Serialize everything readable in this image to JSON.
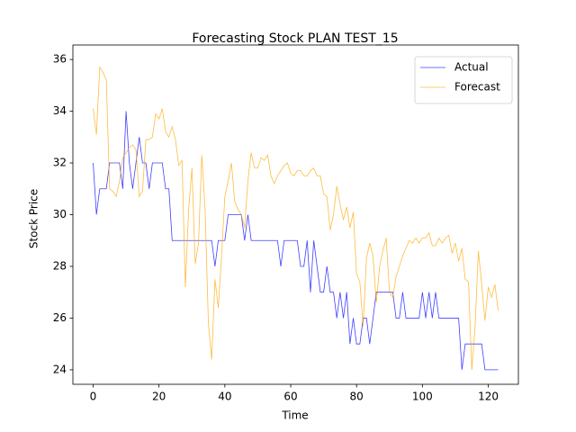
{
  "chart_data": {
    "type": "line",
    "title": "Forecasting Stock PLAN TEST_15",
    "x_label": "Time",
    "y_label": "Stock Price",
    "x": [
      0,
      1,
      2,
      3,
      4,
      5,
      6,
      7,
      8,
      9,
      10,
      11,
      12,
      13,
      14,
      15,
      16,
      17,
      18,
      19,
      20,
      21,
      22,
      23,
      24,
      25,
      26,
      27,
      28,
      29,
      30,
      31,
      32,
      33,
      34,
      35,
      36,
      37,
      38,
      39,
      40,
      41,
      42,
      43,
      44,
      45,
      46,
      47,
      48,
      49,
      50,
      51,
      52,
      53,
      54,
      55,
      56,
      57,
      58,
      59,
      60,
      61,
      62,
      63,
      64,
      65,
      66,
      67,
      68,
      69,
      70,
      71,
      72,
      73,
      74,
      75,
      76,
      77,
      78,
      79,
      80,
      81,
      82,
      83,
      84,
      85,
      86,
      87,
      88,
      89,
      90,
      91,
      92,
      93,
      94,
      95,
      96,
      97,
      98,
      99,
      100,
      101,
      102,
      103,
      104,
      105,
      106,
      107,
      108,
      109,
      110,
      111,
      112,
      113,
      114,
      115,
      116,
      117,
      118,
      119,
      120,
      121,
      122,
      123
    ],
    "series": [
      {
        "name": "Actual",
        "color": "#0000ff",
        "values": [
          32,
          30,
          31,
          31,
          31,
          32,
          32,
          32,
          32,
          31,
          34,
          32,
          31,
          32,
          33,
          32,
          32,
          31,
          32,
          32,
          32,
          32,
          31,
          31,
          29,
          29,
          29,
          29,
          29,
          29,
          29,
          29,
          29,
          29,
          29,
          29,
          29,
          28,
          29,
          29,
          29,
          30,
          30,
          30,
          30,
          30,
          29,
          30,
          29,
          29,
          29,
          29,
          29,
          29,
          29,
          29,
          29,
          28,
          29,
          29,
          29,
          29,
          29,
          28,
          28,
          29,
          27,
          29,
          28,
          27,
          27,
          28,
          27,
          27,
          26,
          27,
          26,
          27,
          25,
          26,
          25,
          25,
          26,
          26,
          25,
          26,
          27,
          27,
          27,
          27,
          27,
          27,
          26,
          26,
          27,
          26,
          26,
          26,
          26,
          26,
          27,
          26,
          27,
          26,
          27,
          26,
          26,
          26,
          26,
          26,
          26,
          26,
          24,
          25,
          25,
          25,
          25,
          25,
          25,
          24,
          24,
          24,
          24,
          24
        ]
      },
      {
        "name": "Forecast",
        "color": "#ffa500",
        "values": [
          34.1,
          33.1,
          35.7,
          35.5,
          35.2,
          31,
          30.9,
          30.7,
          31.3,
          32.2,
          32.4,
          32.6,
          32.7,
          32.5,
          30.7,
          30.9,
          32.9,
          32.9,
          33.0,
          33.9,
          33.7,
          34.1,
          33.2,
          33.0,
          33.4,
          32.9,
          31.9,
          32.1,
          27.2,
          30.2,
          31.8,
          28.1,
          28.9,
          32.3,
          30.2,
          25.8,
          24.4,
          27.5,
          26.4,
          28.4,
          30.7,
          31.3,
          32.0,
          30.5,
          30.2,
          30.0,
          29.5,
          31.3,
          32.4,
          31.8,
          31.8,
          32.2,
          32.1,
          32.3,
          31.5,
          31.2,
          31.5,
          31.7,
          31.9,
          32.0,
          31.6,
          31.5,
          31.7,
          31.7,
          31.5,
          31.5,
          31.7,
          31.8,
          31.5,
          31.5,
          30.8,
          30.7,
          29.4,
          30.0,
          31.1,
          30.4,
          29.8,
          30.3,
          29.5,
          30.1,
          27.7,
          27.4,
          25.7,
          28.3,
          28.9,
          28.4,
          26.6,
          28.0,
          28.6,
          29.1,
          27.0,
          26.8,
          27.6,
          28.0,
          28.4,
          28.7,
          29.0,
          28.9,
          29.1,
          28.9,
          29.1,
          29.1,
          29.3,
          28.8,
          28.8,
          29.1,
          28.9,
          29.1,
          29.2,
          28.5,
          28.9,
          28.2,
          28.7,
          27.5,
          27.4,
          24.0,
          25.7,
          28.6,
          27.3,
          25.9,
          27.2,
          26.8,
          27.3,
          26.3
        ]
      }
    ],
    "xlim": [
      -6.15,
      129.15
    ],
    "ylim": [
      23.44,
      36.56
    ],
    "xticks": [
      0,
      20,
      40,
      60,
      80,
      100,
      120
    ],
    "yticks": [
      24,
      26,
      28,
      30,
      32,
      34,
      36
    ],
    "legend": "upper right"
  }
}
